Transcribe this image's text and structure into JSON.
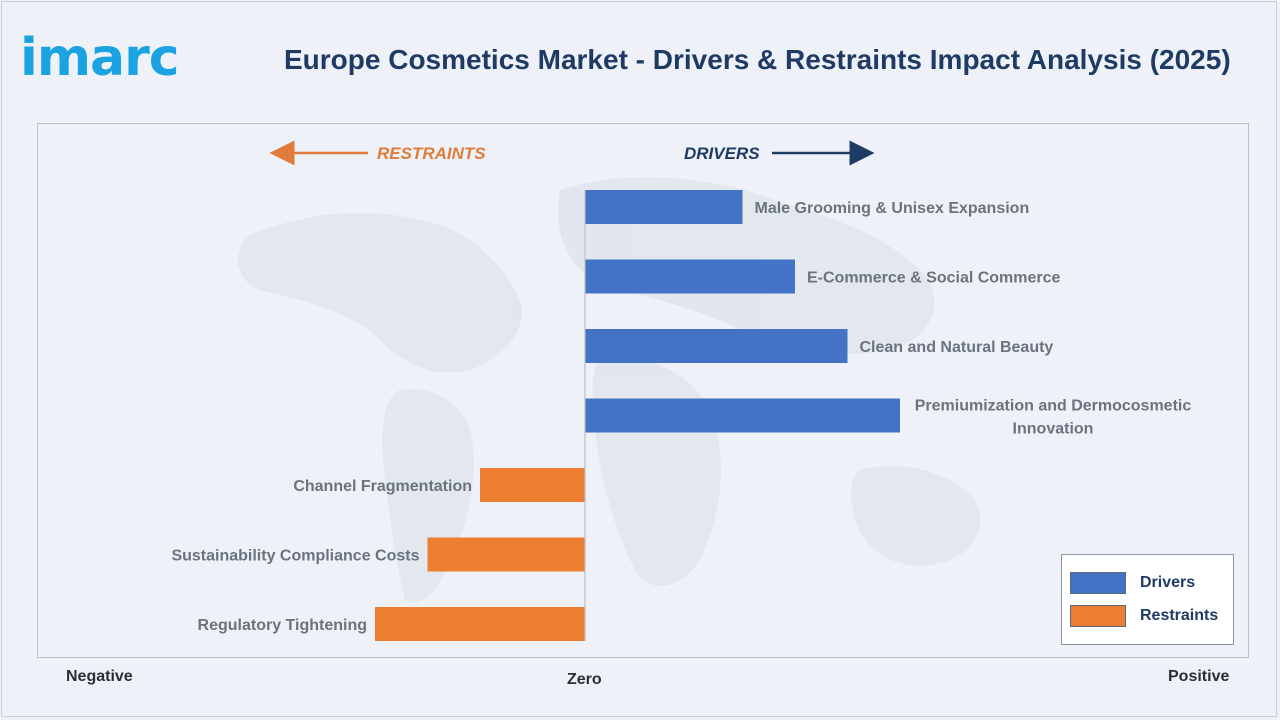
{
  "header": {
    "logo_text": "imarc",
    "title": "Europe Cosmetics Market - Drivers & Restraints Impact Analysis (2025)"
  },
  "axis": {
    "negative_label": "Negative",
    "zero_label": "Zero",
    "positive_label": "Positive"
  },
  "direction_labels": {
    "restraints": "RESTRAINTS",
    "drivers": "DRIVERS"
  },
  "legend": [
    {
      "label": "Drivers",
      "color": "#4472c4"
    },
    {
      "label": "Restraints",
      "color": "#ed7d31"
    }
  ],
  "colors": {
    "drivers": "#4472c4",
    "restraints": "#ed7d31",
    "restraints_arrow": "#e07b39",
    "drivers_arrow": "#1f3b64"
  },
  "chart_data": {
    "type": "bar",
    "orientation": "horizontal",
    "xlim": [
      -4,
      6
    ],
    "categories": [
      "Male Grooming & Unisex Expansion",
      "E-Commerce & Social Commerce",
      "Clean and Natural Beauty",
      "Premiumization and Dermocosmetic Innovation",
      "Channel Fragmentation",
      "Sustainability Compliance Costs",
      "Regulatory Tightening"
    ],
    "series": [
      {
        "name": "Drivers",
        "values": [
          1.5,
          2.0,
          2.5,
          3.0,
          null,
          null,
          null
        ]
      },
      {
        "name": "Restraints",
        "values": [
          null,
          null,
          null,
          null,
          -1.0,
          -1.5,
          -2.0
        ]
      }
    ],
    "grid": false,
    "legend_position": "bottom-right"
  }
}
